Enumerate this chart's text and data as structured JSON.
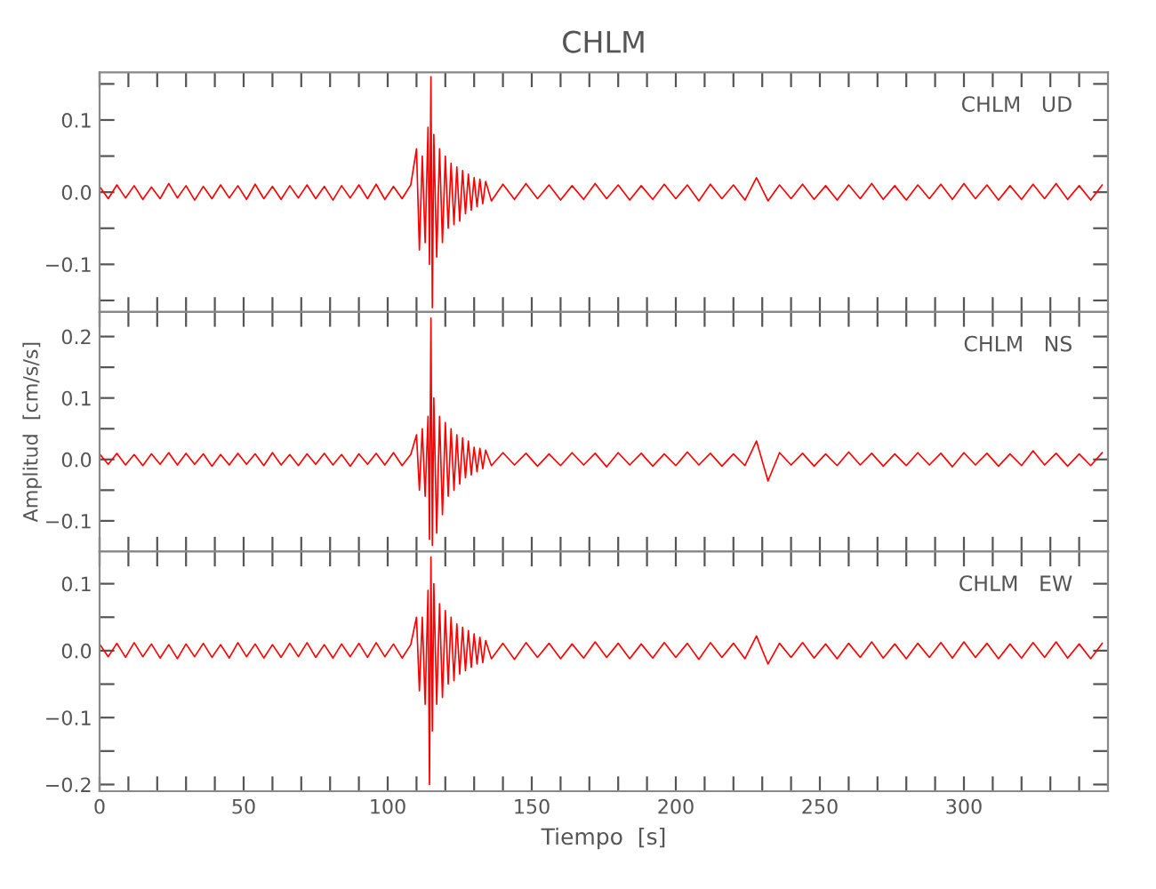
{
  "chart_data": [
    {
      "type": "line",
      "title": "CHLM",
      "annotations": [
        "CHLM   UD"
      ],
      "tick_labels": "y",
      "grid": false,
      "x": [
        0,
        3,
        6,
        9,
        12,
        15,
        18,
        21,
        24,
        27,
        30,
        33,
        36,
        39,
        42,
        45,
        48,
        51,
        54,
        57,
        60,
        63,
        66,
        69,
        72,
        75,
        78,
        81,
        84,
        87,
        90,
        93,
        96,
        99,
        102,
        105,
        108,
        110,
        111,
        112,
        113,
        114,
        114.5,
        115,
        115.5,
        116,
        117,
        118,
        119,
        120,
        121,
        122,
        123,
        124,
        125,
        126,
        127,
        128,
        129,
        130,
        131,
        132,
        133,
        134,
        136,
        140,
        144,
        148,
        152,
        156,
        160,
        164,
        168,
        172,
        176,
        180,
        184,
        188,
        192,
        196,
        200,
        204,
        208,
        212,
        216,
        220,
        224,
        228,
        232,
        236,
        240,
        244,
        248,
        252,
        256,
        260,
        264,
        268,
        272,
        276,
        280,
        284,
        288,
        292,
        296,
        300,
        304,
        308,
        312,
        316,
        320,
        324,
        328,
        332,
        336,
        340,
        344,
        348
      ],
      "series": [
        {
          "color": "#ff0000",
          "values": [
            0.008,
            -0.009,
            0.01,
            -0.008,
            0.009,
            -0.01,
            0.007,
            -0.009,
            0.012,
            -0.008,
            0.009,
            -0.011,
            0.008,
            -0.009,
            0.01,
            -0.008,
            0.009,
            -0.01,
            0.011,
            -0.009,
            0.008,
            -0.01,
            0.009,
            -0.008,
            0.01,
            -0.009,
            0.008,
            -0.011,
            0.009,
            -0.008,
            0.01,
            -0.009,
            0.011,
            -0.01,
            0.008,
            -0.009,
            0.01,
            0.06,
            -0.08,
            0.05,
            -0.07,
            0.09,
            -0.1,
            0.16,
            -0.16,
            0.08,
            -0.09,
            0.06,
            -0.07,
            0.05,
            -0.05,
            0.04,
            -0.045,
            0.035,
            -0.04,
            0.03,
            -0.03,
            0.025,
            -0.025,
            0.02,
            -0.02,
            0.018,
            -0.016,
            0.015,
            -0.012,
            0.011,
            -0.01,
            0.012,
            -0.009,
            0.01,
            -0.011,
            0.009,
            -0.01,
            0.012,
            -0.009,
            0.01,
            -0.011,
            0.009,
            -0.01,
            0.011,
            -0.009,
            0.01,
            -0.012,
            0.011,
            -0.009,
            0.01,
            -0.011,
            0.02,
            -0.012,
            0.01,
            -0.009,
            0.011,
            -0.01,
            0.009,
            -0.011,
            0.01,
            -0.009,
            0.012,
            -0.01,
            0.009,
            -0.011,
            0.01,
            -0.009,
            0.011,
            -0.01,
            0.012,
            -0.009,
            0.01,
            -0.011,
            0.009,
            -0.01,
            0.011,
            -0.009,
            0.012,
            -0.01,
            0.009,
            -0.011,
            0.01
          ]
        }
      ],
      "xlim": [
        0,
        350
      ],
      "xticks": [
        0,
        {
          "value": 10,
          "label": null
        },
        {
          "value": 20,
          "label": null
        },
        {
          "value": 30,
          "label": null
        },
        {
          "value": 40,
          "label": null
        },
        50,
        {
          "value": 60,
          "label": null
        },
        {
          "value": 70,
          "label": null
        },
        {
          "value": 80,
          "label": null
        },
        {
          "value": 90,
          "label": null
        },
        100,
        {
          "value": 110,
          "label": null
        },
        {
          "value": 120,
          "label": null
        },
        {
          "value": 130,
          "label": null
        },
        {
          "value": 140,
          "label": null
        },
        150,
        {
          "value": 160,
          "label": null
        },
        {
          "value": 170,
          "label": null
        },
        {
          "value": 180,
          "label": null
        },
        {
          "value": 190,
          "label": null
        },
        200,
        {
          "value": 210,
          "label": null
        },
        {
          "value": 220,
          "label": null
        },
        {
          "value": 230,
          "label": null
        },
        {
          "value": 240,
          "label": null
        },
        250,
        {
          "value": 260,
          "label": null
        },
        {
          "value": 270,
          "label": null
        },
        {
          "value": 280,
          "label": null
        },
        {
          "value": 290,
          "label": null
        },
        300,
        {
          "value": 310,
          "label": null
        },
        {
          "value": 320,
          "label": null
        },
        {
          "value": 330,
          "label": null
        },
        {
          "value": 340,
          "label": null
        }
      ],
      "ylim": [
        -0.166,
        0.166
      ],
      "yticks": [
        {
          "value": -0.15,
          "label": null
        },
        {
          "value": -0.1,
          "label": "−0.1"
        },
        {
          "value": -0.05,
          "label": null
        },
        {
          "value": 0.0,
          "label": "0.0"
        },
        {
          "value": 0.05,
          "label": null
        },
        {
          "value": 0.1,
          "label": "0.1"
        },
        {
          "value": 0.15,
          "label": null
        }
      ]
    },
    {
      "type": "line",
      "ylabel": "Amplitud  [cm/s/s]",
      "annotations": [
        "CHLM   NS"
      ],
      "tick_labels": "y",
      "grid": false,
      "x": [
        0,
        3,
        6,
        9,
        12,
        15,
        18,
        21,
        24,
        27,
        30,
        33,
        36,
        39,
        42,
        45,
        48,
        51,
        54,
        57,
        60,
        63,
        66,
        69,
        72,
        75,
        78,
        81,
        84,
        87,
        90,
        93,
        96,
        99,
        102,
        105,
        108,
        110,
        111,
        112,
        113,
        114,
        114.5,
        115,
        115.5,
        116,
        117,
        118,
        119,
        120,
        121,
        122,
        123,
        124,
        125,
        126,
        127,
        128,
        129,
        130,
        131,
        132,
        133,
        134,
        136,
        140,
        144,
        148,
        152,
        156,
        160,
        164,
        168,
        172,
        176,
        180,
        184,
        188,
        192,
        196,
        200,
        204,
        208,
        212,
        216,
        220,
        224,
        228,
        232,
        236,
        240,
        244,
        248,
        252,
        256,
        260,
        264,
        268,
        272,
        276,
        280,
        284,
        288,
        292,
        296,
        300,
        304,
        308,
        312,
        316,
        320,
        324,
        328,
        332,
        336,
        340,
        344,
        348
      ],
      "series": [
        {
          "color": "#ff0000",
          "values": [
            0.009,
            -0.008,
            0.01,
            -0.009,
            0.008,
            -0.01,
            0.009,
            -0.008,
            0.011,
            -0.009,
            0.01,
            -0.008,
            0.009,
            -0.011,
            0.008,
            -0.009,
            0.01,
            -0.008,
            0.009,
            -0.01,
            0.011,
            -0.009,
            0.008,
            -0.01,
            0.009,
            -0.008,
            0.01,
            -0.009,
            0.008,
            -0.011,
            0.009,
            -0.008,
            0.01,
            -0.009,
            0.011,
            -0.01,
            0.008,
            0.04,
            -0.05,
            0.05,
            -0.06,
            0.07,
            -0.13,
            0.23,
            -0.14,
            0.1,
            -0.12,
            0.07,
            -0.09,
            0.06,
            -0.06,
            0.05,
            -0.05,
            0.04,
            -0.04,
            0.035,
            -0.03,
            0.03,
            -0.025,
            0.02,
            -0.02,
            0.018,
            -0.015,
            0.015,
            -0.01,
            0.011,
            -0.009,
            0.01,
            -0.011,
            0.009,
            -0.01,
            0.011,
            -0.009,
            0.01,
            -0.012,
            0.011,
            -0.009,
            0.01,
            -0.011,
            0.009,
            -0.01,
            0.012,
            -0.009,
            0.01,
            -0.011,
            0.009,
            -0.01,
            0.03,
            -0.035,
            0.011,
            -0.009,
            0.01,
            -0.011,
            0.009,
            -0.01,
            0.012,
            -0.009,
            0.01,
            -0.011,
            0.009,
            -0.01,
            0.011,
            -0.009,
            0.01,
            -0.012,
            0.011,
            -0.009,
            0.01,
            -0.011,
            0.009,
            -0.01,
            0.014,
            -0.009,
            0.01,
            -0.011,
            0.009,
            -0.01,
            0.011
          ]
        }
      ],
      "xlim": [
        0,
        350
      ],
      "xticks": [
        0,
        {
          "value": 10,
          "label": null
        },
        {
          "value": 20,
          "label": null
        },
        {
          "value": 30,
          "label": null
        },
        {
          "value": 40,
          "label": null
        },
        50,
        {
          "value": 60,
          "label": null
        },
        {
          "value": 70,
          "label": null
        },
        {
          "value": 80,
          "label": null
        },
        {
          "value": 90,
          "label": null
        },
        100,
        {
          "value": 110,
          "label": null
        },
        {
          "value": 120,
          "label": null
        },
        {
          "value": 130,
          "label": null
        },
        {
          "value": 140,
          "label": null
        },
        150,
        {
          "value": 160,
          "label": null
        },
        {
          "value": 170,
          "label": null
        },
        {
          "value": 180,
          "label": null
        },
        {
          "value": 190,
          "label": null
        },
        200,
        {
          "value": 210,
          "label": null
        },
        {
          "value": 220,
          "label": null
        },
        {
          "value": 230,
          "label": null
        },
        {
          "value": 240,
          "label": null
        },
        250,
        {
          "value": 260,
          "label": null
        },
        {
          "value": 270,
          "label": null
        },
        {
          "value": 280,
          "label": null
        },
        {
          "value": 290,
          "label": null
        },
        300,
        {
          "value": 310,
          "label": null
        },
        {
          "value": 320,
          "label": null
        },
        {
          "value": 330,
          "label": null
        },
        {
          "value": 340,
          "label": null
        }
      ],
      "ylim": [
        -0.15,
        0.24
      ],
      "yticks": [
        {
          "value": -0.1,
          "label": "−0.1"
        },
        {
          "value": -0.05,
          "label": null
        },
        {
          "value": 0.0,
          "label": "0.0"
        },
        {
          "value": 0.05,
          "label": null
        },
        {
          "value": 0.1,
          "label": "0.1"
        },
        {
          "value": 0.15,
          "label": null
        },
        {
          "value": 0.2,
          "label": "0.2"
        }
      ]
    },
    {
      "type": "line",
      "xlabel": "Tiempo  [s]",
      "annotations": [
        "CHLM   EW"
      ],
      "grid": false,
      "x": [
        0,
        3,
        6,
        9,
        12,
        15,
        18,
        21,
        24,
        27,
        30,
        33,
        36,
        39,
        42,
        45,
        48,
        51,
        54,
        57,
        60,
        63,
        66,
        69,
        72,
        75,
        78,
        81,
        84,
        87,
        90,
        93,
        96,
        99,
        102,
        105,
        108,
        110,
        111,
        112,
        113,
        114,
        114.5,
        115,
        115.5,
        116,
        117,
        118,
        119,
        120,
        121,
        122,
        123,
        124,
        125,
        126,
        127,
        128,
        129,
        130,
        131,
        132,
        133,
        134,
        136,
        140,
        144,
        148,
        152,
        156,
        160,
        164,
        168,
        172,
        176,
        180,
        184,
        188,
        192,
        196,
        200,
        204,
        208,
        212,
        216,
        220,
        224,
        228,
        232,
        236,
        240,
        244,
        248,
        252,
        256,
        260,
        264,
        268,
        272,
        276,
        280,
        284,
        288,
        292,
        296,
        300,
        304,
        308,
        312,
        316,
        320,
        324,
        328,
        332,
        336,
        340,
        344,
        348
      ],
      "series": [
        {
          "color": "#ff0000",
          "values": [
            0.01,
            -0.009,
            0.011,
            -0.01,
            0.012,
            -0.009,
            0.01,
            -0.011,
            0.009,
            -0.012,
            0.01,
            -0.009,
            0.011,
            -0.01,
            0.009,
            -0.011,
            0.012,
            -0.009,
            0.01,
            -0.011,
            0.009,
            -0.01,
            0.011,
            -0.009,
            0.012,
            -0.01,
            0.009,
            -0.011,
            0.01,
            -0.009,
            0.011,
            -0.01,
            0.012,
            -0.009,
            0.01,
            -0.011,
            0.009,
            0.05,
            -0.06,
            0.05,
            -0.08,
            0.09,
            -0.2,
            0.14,
            -0.12,
            0.1,
            -0.08,
            0.07,
            -0.07,
            0.06,
            -0.05,
            0.05,
            -0.045,
            0.04,
            -0.035,
            0.035,
            -0.03,
            0.03,
            -0.025,
            0.025,
            -0.02,
            0.02,
            -0.018,
            0.015,
            -0.012,
            0.011,
            -0.013,
            0.012,
            -0.01,
            0.011,
            -0.012,
            0.01,
            -0.011,
            0.013,
            -0.01,
            0.011,
            -0.012,
            0.01,
            -0.011,
            0.012,
            -0.01,
            0.011,
            -0.013,
            0.012,
            -0.01,
            0.011,
            -0.012,
            0.022,
            -0.02,
            0.011,
            -0.01,
            0.012,
            -0.011,
            0.01,
            -0.012,
            0.011,
            -0.01,
            0.013,
            -0.011,
            0.01,
            -0.012,
            0.011,
            -0.01,
            0.012,
            -0.011,
            0.013,
            -0.01,
            0.011,
            -0.012,
            0.01,
            -0.011,
            0.012,
            -0.01,
            0.013,
            -0.011,
            0.01,
            -0.012,
            0.011
          ]
        }
      ],
      "xlim": [
        0,
        350
      ],
      "xticks": [
        0,
        {
          "value": 10,
          "label": null
        },
        {
          "value": 20,
          "label": null
        },
        {
          "value": 30,
          "label": null
        },
        {
          "value": 40,
          "label": null
        },
        50,
        {
          "value": 60,
          "label": null
        },
        {
          "value": 70,
          "label": null
        },
        {
          "value": 80,
          "label": null
        },
        {
          "value": 90,
          "label": null
        },
        100,
        {
          "value": 110,
          "label": null
        },
        {
          "value": 120,
          "label": null
        },
        {
          "value": 130,
          "label": null
        },
        {
          "value": 140,
          "label": null
        },
        150,
        {
          "value": 160,
          "label": null
        },
        {
          "value": 170,
          "label": null
        },
        {
          "value": 180,
          "label": null
        },
        {
          "value": 190,
          "label": null
        },
        200,
        {
          "value": 210,
          "label": null
        },
        {
          "value": 220,
          "label": null
        },
        {
          "value": 230,
          "label": null
        },
        {
          "value": 240,
          "label": null
        },
        250,
        {
          "value": 260,
          "label": null
        },
        {
          "value": 270,
          "label": null
        },
        {
          "value": 280,
          "label": null
        },
        {
          "value": 290,
          "label": null
        },
        300,
        {
          "value": 310,
          "label": null
        },
        {
          "value": 320,
          "label": null
        },
        {
          "value": 330,
          "label": null
        },
        {
          "value": 340,
          "label": null
        }
      ],
      "ylim": [
        -0.21,
        0.148
      ],
      "yticks": [
        {
          "value": -0.2,
          "label": "−0.2"
        },
        {
          "value": -0.15,
          "label": null
        },
        {
          "value": -0.1,
          "label": "−0.1"
        },
        {
          "value": -0.05,
          "label": null
        },
        {
          "value": 0.0,
          "label": "0.0"
        },
        {
          "value": 0.05,
          "label": null
        },
        {
          "value": 0.1,
          "label": "0.1"
        }
      ]
    }
  ]
}
